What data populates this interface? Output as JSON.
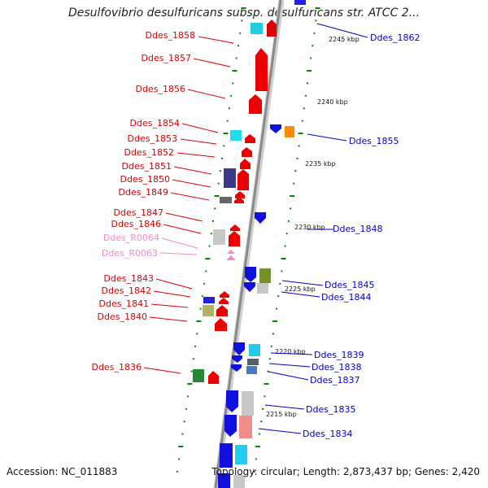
{
  "title": "Desulfovibrio desulfuricans subsp. desulfuricans str. ATCC 2...",
  "footer": {
    "accession": "Accession: NC_011883",
    "stats": "Topology: circular; Length: 2,873,437 bp; Genes: 2,420"
  },
  "colors": {
    "forward": "#ee0000",
    "reverse": "#0000dd",
    "rna": "#f08cc8",
    "backbone": "#999999",
    "tick": "#008800"
  },
  "scale_labels": [
    "2245 kbp",
    "2240 kbp",
    "2235 kbp",
    "2230 kbp",
    "2225 kbp",
    "2220 kbp",
    "2215 kbp"
  ],
  "left_labels": [
    "Ddes_1858",
    "Ddes_1857",
    "Ddes_1856",
    "Ddes_1854",
    "Ddes_1853",
    "Ddes_1852",
    "Ddes_1851",
    "Ddes_1850",
    "Ddes_1849",
    "Ddes_1847",
    "Ddes_1846",
    "Ddes_R0064",
    "Ddes_R0063",
    "Ddes_1843",
    "Ddes_1842",
    "Ddes_1841",
    "Ddes_1840",
    "Ddes_1836"
  ],
  "right_labels": [
    "Ddes_1862",
    "Ddes_1855",
    "Ddes_1848",
    "Ddes_1845",
    "Ddes_1844",
    "Ddes_1839",
    "Ddes_1838",
    "Ddes_1837",
    "Ddes_1835",
    "Ddes_1834"
  ]
}
